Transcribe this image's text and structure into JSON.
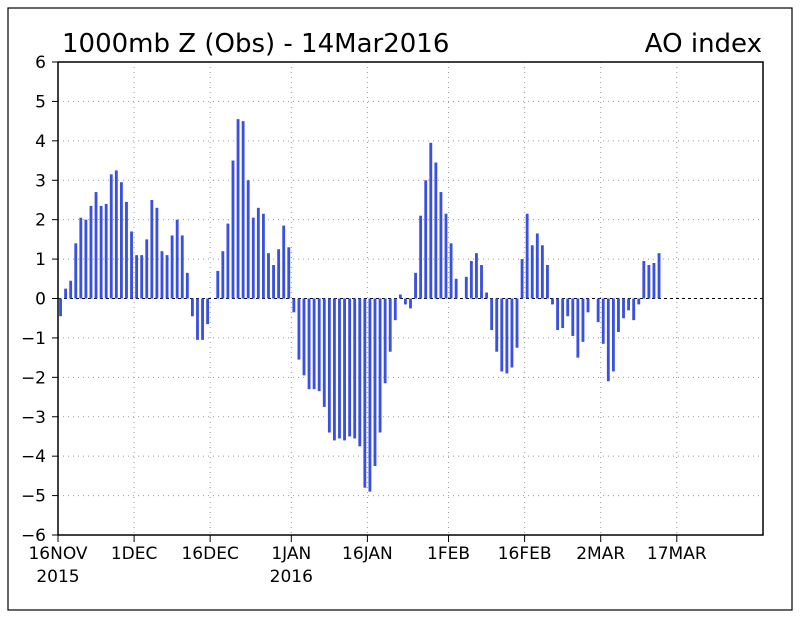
{
  "chart_data": {
    "type": "bar",
    "title": "1000mb Z (Obs) - 14Mar2016",
    "title_right": "AO index",
    "xlabel": "",
    "ylabel": "",
    "ylim": [
      -6,
      6
    ],
    "y_ticks": [
      6,
      5,
      4,
      3,
      2,
      1,
      0,
      -1,
      -2,
      -3,
      -4,
      -5,
      -6
    ],
    "x_range_days": [
      0,
      139
    ],
    "x_ticks": [
      {
        "day": 0,
        "label": "16NOV",
        "sublabel": "2015"
      },
      {
        "day": 15,
        "label": "1DEC",
        "sublabel": ""
      },
      {
        "day": 30,
        "label": "16DEC",
        "sublabel": ""
      },
      {
        "day": 46,
        "label": "1JAN",
        "sublabel": "2016"
      },
      {
        "day": 61,
        "label": "16JAN",
        "sublabel": ""
      },
      {
        "day": 77,
        "label": "1FEB",
        "sublabel": ""
      },
      {
        "day": 92,
        "label": "16FEB",
        "sublabel": ""
      },
      {
        "day": 107,
        "label": "2MAR",
        "sublabel": ""
      },
      {
        "day": 122,
        "label": "17MAR",
        "sublabel": ""
      }
    ],
    "grid": true,
    "bar_color": "#3a50e0",
    "series": [
      {
        "values": [
          -0.45,
          0.25,
          0.45,
          1.4,
          2.05,
          2.0,
          2.35,
          2.7,
          2.35,
          2.4,
          3.15,
          3.25,
          2.95,
          2.45,
          1.7,
          1.1,
          1.1,
          1.5,
          2.5,
          2.3,
          1.2,
          1.1,
          1.6,
          2.0,
          1.6,
          0.65,
          -0.45,
          -1.05,
          -1.05,
          -0.65,
          0.0,
          0.7,
          1.2,
          1.9,
          3.5,
          4.55,
          4.5,
          3.0,
          2.05,
          2.3,
          2.15,
          1.15,
          0.85,
          1.25,
          1.85,
          1.3,
          -0.35,
          -1.55,
          -1.95,
          -2.3,
          -2.3,
          -2.35,
          -2.75,
          -3.4,
          -3.6,
          -3.55,
          -3.6,
          -3.5,
          -3.55,
          -3.75,
          -4.8,
          -4.9,
          -4.25,
          -3.4,
          -2.15,
          -1.35,
          -0.55,
          0.1,
          -0.15,
          -0.25,
          0.65,
          2.1,
          3.0,
          3.95,
          3.45,
          2.7,
          2.15,
          1.4,
          0.5,
          0.0,
          0.55,
          0.95,
          1.15,
          0.85,
          0.15,
          -0.8,
          -1.35,
          -1.85,
          -1.9,
          -1.75,
          -1.25,
          1.0,
          2.15,
          1.35,
          1.65,
          1.35,
          0.85,
          -0.15,
          -0.8,
          -0.75,
          -0.45,
          -0.95,
          -1.5,
          -1.1,
          -0.35,
          0.0,
          -0.6,
          -1.15,
          -2.1,
          -1.85,
          -0.85,
          -0.5,
          -0.3,
          -0.55,
          -0.15,
          0.95,
          0.85,
          0.9,
          1.15
        ]
      }
    ]
  }
}
